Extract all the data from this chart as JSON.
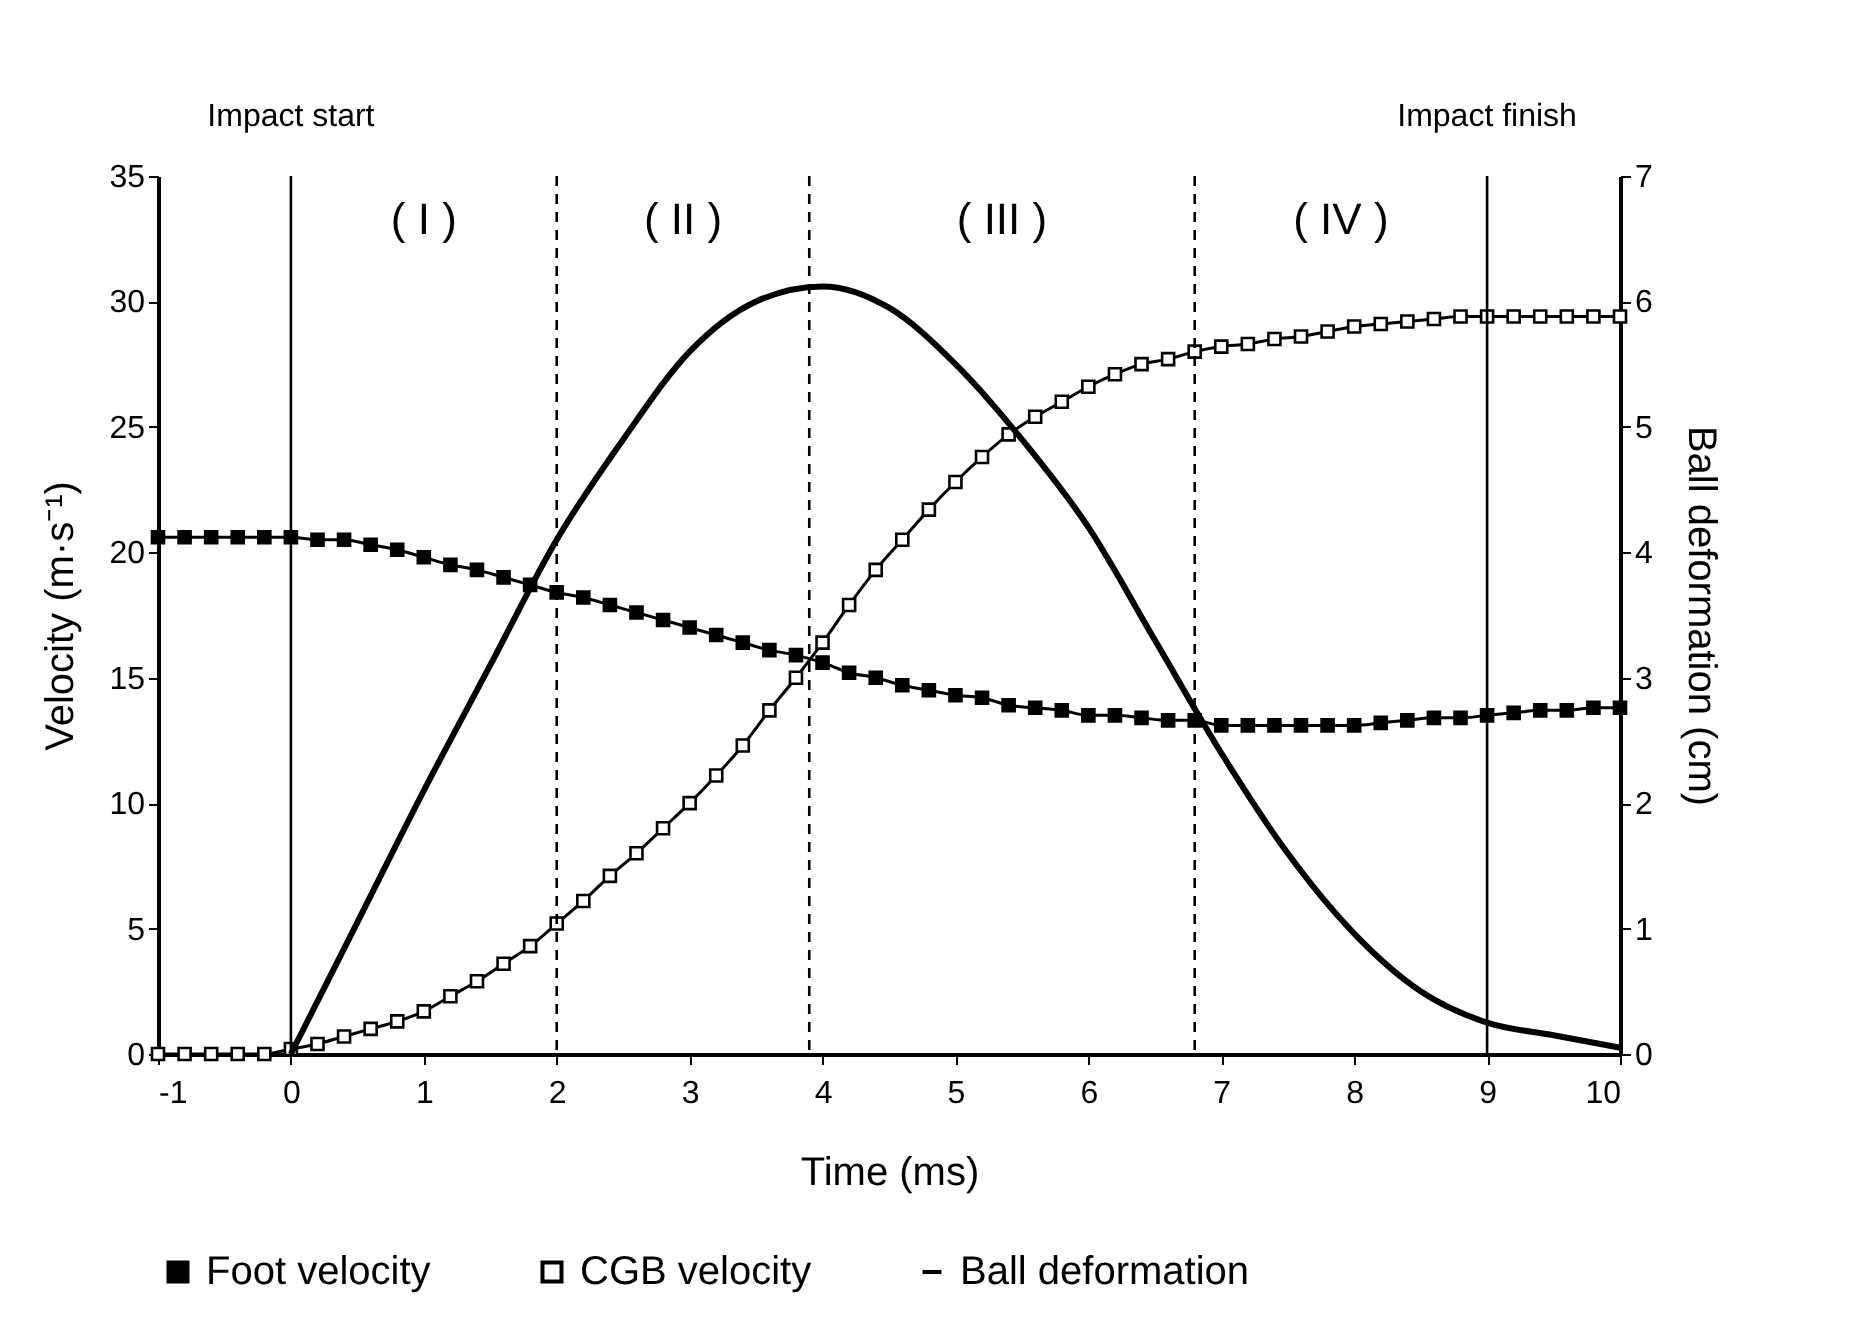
{
  "chart_data": {
    "type": "line",
    "xlabel": "Time (ms)",
    "ylabel": "Velocity (m·s⁻¹)",
    "y2label": "Ball deformation (cm)",
    "x": [
      -1,
      -0.8,
      -0.6,
      -0.4,
      -0.2,
      0,
      0.2,
      0.4,
      0.6,
      0.8,
      1,
      1.2,
      1.4,
      1.6,
      1.8,
      2,
      2.2,
      2.4,
      2.6,
      2.8,
      3,
      3.2,
      3.4,
      3.6,
      3.8,
      4,
      4.2,
      4.4,
      4.6,
      4.8,
      5,
      5.2,
      5.4,
      5.6,
      5.8,
      6,
      6.2,
      6.4,
      6.6,
      6.8,
      7,
      7.2,
      7.4,
      7.6,
      7.8,
      8,
      8.2,
      8.4,
      8.6,
      8.8,
      9,
      9.2,
      9.4,
      9.6,
      9.8,
      10
    ],
    "series": [
      {
        "name": "Foot velocity",
        "color": "#000000",
        "marker": "square",
        "values": [
          20.6,
          20.6,
          20.6,
          20.6,
          20.6,
          20.6,
          20.5,
          20.5,
          20.3,
          20.1,
          19.8,
          19.5,
          19.3,
          19.0,
          18.7,
          18.4,
          18.2,
          17.9,
          17.6,
          17.3,
          17.0,
          16.7,
          16.4,
          16.1,
          15.9,
          15.6,
          15.2,
          15.0,
          14.7,
          14.5,
          14.3,
          14.2,
          13.9,
          13.8,
          13.7,
          13.5,
          13.5,
          13.4,
          13.3,
          13.3,
          13.1,
          13.1,
          13.1,
          13.1,
          13.1,
          13.1,
          13.2,
          13.3,
          13.4,
          13.4,
          13.5,
          13.6,
          13.7,
          13.7,
          13.8,
          13.8
        ]
      },
      {
        "name": "CGB velocity",
        "color": "#ffffff",
        "marker": "square",
        "values": [
          0,
          0,
          0,
          0,
          0,
          0.2,
          0.4,
          0.7,
          1.0,
          1.3,
          1.7,
          2.3,
          2.9,
          3.6,
          4.3,
          5.2,
          6.1,
          7.1,
          8.0,
          9.0,
          10.0,
          11.1,
          12.3,
          13.7,
          15.0,
          16.4,
          17.9,
          19.3,
          20.5,
          21.7,
          22.8,
          23.8,
          24.7,
          25.4,
          26.0,
          26.6,
          27.1,
          27.5,
          27.7,
          28.0,
          28.2,
          28.3,
          28.5,
          28.6,
          28.8,
          29.0,
          29.1,
          29.2,
          29.3,
          29.4,
          29.4,
          29.4,
          29.4,
          29.4,
          29.4,
          29.4
        ]
      },
      {
        "name": "Ball deformation",
        "color": "#000000",
        "marker": "none",
        "axis": "y2",
        "x": [
          0,
          0.5,
          1,
          1.5,
          2,
          2.5,
          3,
          3.5,
          4,
          4.5,
          5,
          5.5,
          6,
          6.5,
          7,
          7.5,
          8,
          8.5,
          9,
          9.5,
          10
        ],
        "values": [
          0,
          1.05,
          2.1,
          3.1,
          4.1,
          4.9,
          5.6,
          6.0,
          6.12,
          5.95,
          5.5,
          4.9,
          4.2,
          3.3,
          2.4,
          1.6,
          0.96,
          0.5,
          0.25,
          0.15,
          0.05
        ]
      }
    ],
    "xlim": [
      -1,
      10
    ],
    "xticks": [
      -1,
      0,
      1,
      2,
      3,
      4,
      5,
      6,
      7,
      8,
      9,
      10
    ],
    "ylim": [
      0,
      35
    ],
    "yticks": [
      0,
      5,
      10,
      15,
      20,
      25,
      30,
      35
    ],
    "y2lim": [
      0,
      7
    ],
    "y2ticks": [
      0,
      1,
      2,
      3,
      4,
      5,
      6,
      7
    ],
    "ref_lines": [
      {
        "axis": "x",
        "value": 0,
        "label": "Impact start",
        "color": "#000000",
        "line_style": "solid"
      },
      {
        "axis": "x",
        "value": 2,
        "color": "#000000",
        "line_style": "dashed"
      },
      {
        "axis": "x",
        "value": 3.9,
        "color": "#000000",
        "line_style": "dashed"
      },
      {
        "axis": "x",
        "value": 6.8,
        "color": "#000000",
        "line_style": "dashed"
      },
      {
        "axis": "x",
        "value": 9,
        "label": "Impact finish",
        "color": "#000000",
        "line_style": "solid"
      }
    ],
    "annotations": [
      "( I )",
      "( II )",
      "( III )",
      "( IV )"
    ],
    "grid": false,
    "legend": "bottom"
  }
}
